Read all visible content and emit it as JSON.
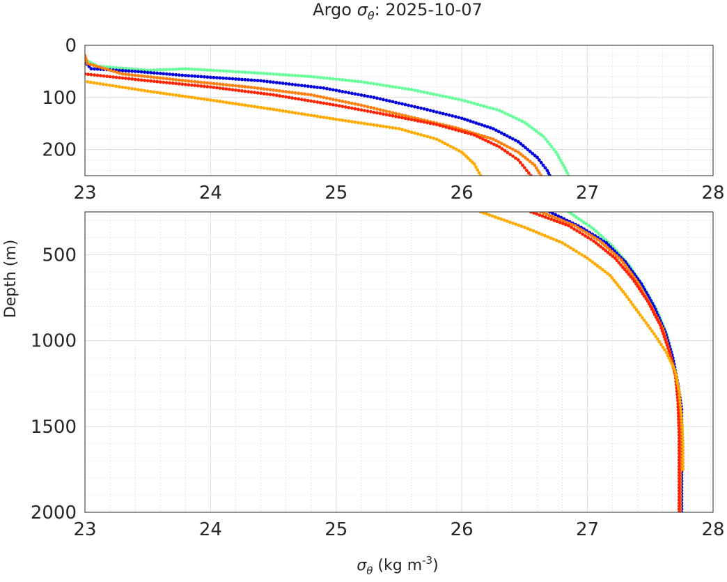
{
  "chart_data": [
    {
      "type": "scatter",
      "panel": "upper",
      "title_prefix": "Argo ",
      "title_symbol": "σ",
      "title_subscript": "θ",
      "title_suffix": ": 2025-10-07",
      "xlabel": "",
      "ylabel": "",
      "xlim": [
        23,
        28
      ],
      "ylim": [
        0,
        250
      ],
      "y_reversed": true,
      "grid": true,
      "minor_grid": true,
      "xticks": [
        "23",
        "24",
        "25",
        "26",
        "27",
        "28"
      ],
      "yticks": [
        "0",
        "100",
        "200"
      ],
      "series": [
        {
          "color": "#66ff99",
          "points": [
            [
              23.02,
              30
            ],
            [
              23.1,
              40
            ],
            [
              23.5,
              48
            ],
            [
              23.8,
              45
            ],
            [
              24.3,
              52
            ],
            [
              24.8,
              60
            ],
            [
              25.2,
              70
            ],
            [
              25.6,
              85
            ],
            [
              26.0,
              105
            ],
            [
              26.3,
              125
            ],
            [
              26.5,
              148
            ],
            [
              26.65,
              175
            ],
            [
              26.75,
              205
            ],
            [
              26.82,
              235
            ],
            [
              26.85,
              250
            ]
          ]
        },
        {
          "color": "#0000dd",
          "points": [
            [
              23.0,
              32
            ],
            [
              23.05,
              45
            ],
            [
              23.4,
              50
            ],
            [
              23.8,
              58
            ],
            [
              24.4,
              68
            ],
            [
              24.9,
              82
            ],
            [
              25.3,
              100
            ],
            [
              25.7,
              122
            ],
            [
              26.0,
              140
            ],
            [
              26.25,
              160
            ],
            [
              26.45,
              185
            ],
            [
              26.6,
              215
            ],
            [
              26.68,
              240
            ],
            [
              26.7,
              250
            ]
          ]
        },
        {
          "color": "#ff7f0e",
          "points": [
            [
              23.0,
              20
            ],
            [
              23.02,
              35
            ],
            [
              23.3,
              55
            ],
            [
              23.8,
              68
            ],
            [
              24.3,
              80
            ],
            [
              24.8,
              95
            ],
            [
              25.2,
              115
            ],
            [
              25.6,
              138
            ],
            [
              25.95,
              158
            ],
            [
              26.25,
              180
            ],
            [
              26.45,
              205
            ],
            [
              26.58,
              230
            ],
            [
              26.63,
              250
            ]
          ]
        },
        {
          "color": "#ff2200",
          "points": [
            [
              23.0,
              55
            ],
            [
              23.5,
              68
            ],
            [
              24.0,
              80
            ],
            [
              24.5,
              95
            ],
            [
              25.0,
              115
            ],
            [
              25.4,
              133
            ],
            [
              25.8,
              152
            ],
            [
              26.1,
              172
            ],
            [
              26.3,
              195
            ],
            [
              26.45,
              220
            ],
            [
              26.55,
              250
            ]
          ]
        },
        {
          "color": "#ffaa00",
          "points": [
            [
              23.02,
              70
            ],
            [
              23.5,
              88
            ],
            [
              24.0,
              105
            ],
            [
              24.5,
              123
            ],
            [
              25.0,
              142
            ],
            [
              25.5,
              160
            ],
            [
              25.8,
              180
            ],
            [
              26.0,
              205
            ],
            [
              26.1,
              228
            ],
            [
              26.15,
              250
            ]
          ]
        }
      ]
    },
    {
      "type": "scatter",
      "panel": "lower",
      "xlabel_symbol": "σ",
      "xlabel_subscript": "θ",
      "xlabel_units": " (kg m",
      "xlabel_exponent": "-3",
      "xlabel_close": ")",
      "ylabel": "Depth (m)",
      "xlim": [
        23,
        28
      ],
      "ylim": [
        250,
        2000
      ],
      "y_reversed": true,
      "grid": true,
      "minor_grid": true,
      "xticks": [
        "23",
        "24",
        "25",
        "26",
        "27",
        "28"
      ],
      "yticks": [
        "500",
        "1000",
        "1500",
        "2000"
      ],
      "series": [
        {
          "color": "#66ff99",
          "points": [
            [
              26.85,
              250
            ],
            [
              27.05,
              350
            ],
            [
              27.2,
              450
            ],
            [
              27.33,
              560
            ],
            [
              27.45,
              690
            ],
            [
              27.55,
              820
            ],
            [
              27.63,
              960
            ],
            [
              27.68,
              1100
            ],
            [
              27.72,
              1250
            ],
            [
              27.74,
              1350
            ],
            [
              27.75,
              1400
            ]
          ]
        },
        {
          "color": "#0000dd",
          "points": [
            [
              26.7,
              250
            ],
            [
              26.95,
              340
            ],
            [
              27.15,
              430
            ],
            [
              27.3,
              540
            ],
            [
              27.43,
              670
            ],
            [
              27.53,
              800
            ],
            [
              27.62,
              950
            ],
            [
              27.68,
              1100
            ],
            [
              27.72,
              1250
            ],
            [
              27.74,
              1350
            ],
            [
              27.75,
              1400
            ],
            [
              27.75,
              1550
            ],
            [
              27.75,
              1800
            ],
            [
              27.75,
              2000
            ]
          ]
        },
        {
          "color": "#ff7f0e",
          "points": [
            [
              26.63,
              250
            ],
            [
              26.9,
              330
            ],
            [
              27.1,
              420
            ],
            [
              27.27,
              530
            ],
            [
              27.4,
              660
            ],
            [
              27.5,
              790
            ],
            [
              27.6,
              930
            ],
            [
              27.66,
              1080
            ],
            [
              27.71,
              1230
            ],
            [
              27.73,
              1400
            ],
            [
              27.74,
              1600
            ],
            [
              27.74,
              1800
            ],
            [
              27.74,
              2000
            ]
          ]
        },
        {
          "color": "#ff2200",
          "points": [
            [
              26.55,
              250
            ],
            [
              26.85,
              330
            ],
            [
              27.05,
              420
            ],
            [
              27.22,
              520
            ],
            [
              27.36,
              640
            ],
            [
              27.48,
              770
            ],
            [
              27.58,
              910
            ],
            [
              27.65,
              1060
            ],
            [
              27.7,
              1200
            ],
            [
              27.72,
              1350
            ],
            [
              27.73,
              1550
            ],
            [
              27.73,
              1750
            ],
            [
              27.73,
              2000
            ]
          ]
        },
        {
          "color": "#ffaa00",
          "points": [
            [
              26.15,
              250
            ],
            [
              26.5,
              340
            ],
            [
              26.8,
              430
            ],
            [
              27.0,
              520
            ],
            [
              27.18,
              620
            ],
            [
              27.3,
              730
            ],
            [
              27.42,
              850
            ],
            [
              27.53,
              960
            ],
            [
              27.63,
              1070
            ],
            [
              27.7,
              1180
            ],
            [
              27.73,
              1300
            ],
            [
              27.75,
              1450
            ],
            [
              27.76,
              1600
            ],
            [
              27.76,
              1750
            ]
          ]
        }
      ]
    }
  ]
}
